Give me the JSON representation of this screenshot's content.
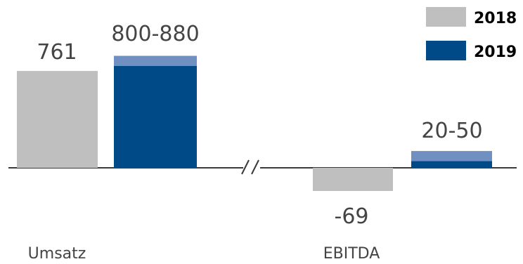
{
  "chart_data": [
    {
      "type": "bar",
      "title": "",
      "xlabel": "",
      "ylabel": "",
      "categories": [
        "Umsatz"
      ],
      "series": [
        {
          "name": "2018",
          "values": [
            761
          ],
          "label": "761"
        },
        {
          "name": "2019",
          "values": [
            [
              800,
              880
            ]
          ],
          "label": "800-880"
        }
      ],
      "ylim": [
        0,
        880
      ]
    },
    {
      "type": "bar",
      "title": "",
      "xlabel": "",
      "ylabel": "",
      "categories": [
        "EBITDA"
      ],
      "series": [
        {
          "name": "2018",
          "values": [
            -69
          ],
          "label": "-69"
        },
        {
          "name": "2019",
          "values": [
            [
              20,
              50
            ]
          ],
          "label": "20-50"
        }
      ],
      "ylim": [
        -69,
        50
      ]
    }
  ],
  "legend": {
    "placement": "top-right",
    "items": [
      {
        "name": "2018",
        "color": "#bfbfbf"
      },
      {
        "name": "2019",
        "color": "#004b87"
      }
    ]
  },
  "colors": {
    "y2018": "#bfbfbf",
    "y2019": "#004b87",
    "y2019_range": "#6f90c1",
    "axis": "#3a3a3a",
    "text": "#444444"
  }
}
